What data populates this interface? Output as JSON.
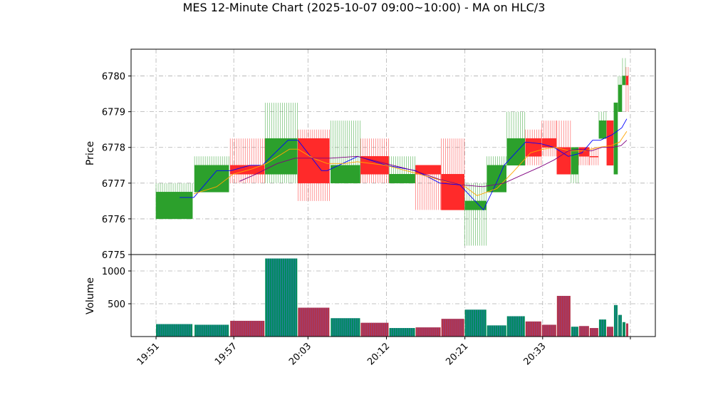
{
  "chart_data": {
    "type": "candlestick",
    "title": "MES 12-Minute Chart (2025-10-07 09:00~10:00) - MA on HLC/3",
    "price_panel": {
      "ylabel": "Price",
      "ylim": [
        6775,
        6780.75
      ],
      "yticks": [
        "6775",
        "6776",
        "6777",
        "6778",
        "6779",
        "6780"
      ],
      "grid": true
    },
    "volume_panel": {
      "ylabel": "Volume",
      "ylim": [
        0,
        1250
      ],
      "yticks": [
        "500",
        "1000"
      ],
      "grid": true
    },
    "xticks": [
      {
        "x": 0.0,
        "label": "19:51"
      },
      {
        "x": 10.9,
        "label": "19:57"
      },
      {
        "x": 21.3,
        "label": "20:03"
      },
      {
        "x": 32.3,
        "label": "20:12"
      },
      {
        "x": 43.3,
        "label": "20:21"
      },
      {
        "x": 54.2,
        "label": "20:33"
      },
      {
        "x": 66.5,
        "label": ""
      }
    ],
    "xlim": [
      -3.5,
      70.0
    ],
    "candles": [
      {
        "x": 0.0,
        "w": 5.1,
        "o": 6776.0,
        "h": 6777.0,
        "l": 6776.0,
        "c": 6776.75,
        "color": "green"
      },
      {
        "x": 5.4,
        "w": 4.8,
        "o": 6776.75,
        "h": 6777.75,
        "l": 6776.75,
        "c": 6777.5,
        "color": "green"
      },
      {
        "x": 10.4,
        "w": 4.8,
        "o": 6777.5,
        "h": 6778.25,
        "l": 6777.0,
        "c": 6777.25,
        "color": "red"
      },
      {
        "x": 15.3,
        "w": 4.5,
        "o": 6777.25,
        "h": 6779.25,
        "l": 6777.0,
        "c": 6778.25,
        "color": "green"
      },
      {
        "x": 19.9,
        "w": 4.4,
        "o": 6778.25,
        "h": 6778.5,
        "l": 6776.5,
        "c": 6777.0,
        "color": "red"
      },
      {
        "x": 24.5,
        "w": 4.1,
        "o": 6777.0,
        "h": 6778.75,
        "l": 6777.0,
        "c": 6777.5,
        "color": "green"
      },
      {
        "x": 28.7,
        "w": 3.9,
        "o": 6777.75,
        "h": 6778.25,
        "l": 6777.0,
        "c": 6777.25,
        "color": "red"
      },
      {
        "x": 32.7,
        "w": 3.6,
        "o": 6777.0,
        "h": 6777.75,
        "l": 6777.0,
        "c": 6777.25,
        "color": "green"
      },
      {
        "x": 36.4,
        "w": 3.5,
        "o": 6777.5,
        "h": 6777.5,
        "l": 6776.25,
        "c": 6777.25,
        "color": "red"
      },
      {
        "x": 40.0,
        "w": 3.2,
        "o": 6777.25,
        "h": 6778.25,
        "l": 6776.25,
        "c": 6776.25,
        "color": "red"
      },
      {
        "x": 43.3,
        "w": 3.0,
        "o": 6776.25,
        "h": 6777.0,
        "l": 6775.25,
        "c": 6776.5,
        "color": "green"
      },
      {
        "x": 46.4,
        "w": 2.7,
        "o": 6776.75,
        "h": 6777.75,
        "l": 6776.75,
        "c": 6777.5,
        "color": "green"
      },
      {
        "x": 49.2,
        "w": 2.5,
        "o": 6777.5,
        "h": 6779.0,
        "l": 6777.5,
        "c": 6778.25,
        "color": "green"
      },
      {
        "x": 51.8,
        "w": 2.2,
        "o": 6778.25,
        "h": 6778.5,
        "l": 6777.5,
        "c": 6777.75,
        "color": "red"
      },
      {
        "x": 54.1,
        "w": 2.0,
        "o": 6778.25,
        "h": 6778.75,
        "l": 6777.75,
        "c": 6778.0,
        "color": "red"
      },
      {
        "x": 56.2,
        "w": 1.9,
        "o": 6778.0,
        "h": 6778.75,
        "l": 6777.25,
        "c": 6777.25,
        "color": "red"
      },
      {
        "x": 58.2,
        "w": 1.0,
        "o": 6777.25,
        "h": 6778.0,
        "l": 6777.0,
        "c": 6778.0,
        "color": "green"
      },
      {
        "x": 59.3,
        "w": 1.4,
        "o": 6778.0,
        "h": 6778.0,
        "l": 6777.5,
        "c": 6777.75,
        "color": "red"
      },
      {
        "x": 60.8,
        "w": 1.2,
        "o": 6777.75,
        "h": 6778.0,
        "l": 6777.5,
        "c": 6777.75,
        "color": "red"
      },
      {
        "x": 62.1,
        "w": 1.0,
        "o": 6778.25,
        "h": 6779.0,
        "l": 6778.25,
        "c": 6778.75,
        "color": "green"
      },
      {
        "x": 63.2,
        "w": 0.9,
        "o": 6778.75,
        "h": 6778.75,
        "l": 6777.5,
        "c": 6777.5,
        "color": "red"
      },
      {
        "x": 64.2,
        "w": 0.5,
        "o": 6777.25,
        "h": 6779.25,
        "l": 6777.25,
        "c": 6779.25,
        "color": "green"
      },
      {
        "x": 64.8,
        "w": 0.5,
        "o": 6779.0,
        "h": 6780.0,
        "l": 6779.0,
        "c": 6779.75,
        "color": "green"
      },
      {
        "x": 65.4,
        "w": 0.4,
        "o": 6779.75,
        "h": 6780.5,
        "l": 6779.75,
        "c": 6780.0,
        "color": "green"
      },
      {
        "x": 65.9,
        "w": 0.3,
        "o": 6780.0,
        "h": 6780.25,
        "l": 6779.0,
        "c": 6779.75,
        "color": "red"
      }
    ],
    "volume": [
      {
        "x": 0.0,
        "w": 5.1,
        "v": 190
      },
      {
        "x": 5.4,
        "w": 4.8,
        "v": 180
      },
      {
        "x": 10.4,
        "w": 4.8,
        "v": 240
      },
      {
        "x": 15.3,
        "w": 4.5,
        "v": 1190
      },
      {
        "x": 19.9,
        "w": 4.4,
        "v": 440
      },
      {
        "x": 24.5,
        "w": 4.1,
        "v": 280
      },
      {
        "x": 28.7,
        "w": 3.9,
        "v": 210
      },
      {
        "x": 32.7,
        "w": 3.6,
        "v": 130
      },
      {
        "x": 36.4,
        "w": 3.5,
        "v": 140
      },
      {
        "x": 40.0,
        "w": 3.2,
        "v": 270
      },
      {
        "x": 43.3,
        "w": 3.0,
        "v": 410
      },
      {
        "x": 46.4,
        "w": 2.7,
        "v": 170
      },
      {
        "x": 49.2,
        "w": 2.5,
        "v": 310
      },
      {
        "x": 51.8,
        "w": 2.2,
        "v": 230
      },
      {
        "x": 54.1,
        "w": 2.0,
        "v": 180
      },
      {
        "x": 56.2,
        "w": 1.9,
        "v": 620
      },
      {
        "x": 58.2,
        "w": 1.0,
        "v": 150
      },
      {
        "x": 59.3,
        "w": 1.4,
        "v": 160
      },
      {
        "x": 60.8,
        "w": 1.2,
        "v": 130
      },
      {
        "x": 62.1,
        "w": 1.0,
        "v": 260
      },
      {
        "x": 63.2,
        "w": 0.9,
        "v": 150
      },
      {
        "x": 64.2,
        "w": 0.5,
        "v": 480
      },
      {
        "x": 64.8,
        "w": 0.5,
        "v": 330
      },
      {
        "x": 65.4,
        "w": 0.4,
        "v": 220
      },
      {
        "x": 65.9,
        "w": 0.3,
        "v": 200
      }
    ],
    "ma_lines": [
      {
        "color": "#0000ff",
        "points": [
          [
            3.3,
            6776.6
          ],
          [
            5.3,
            6776.6
          ],
          [
            8.5,
            6777.35
          ],
          [
            10.5,
            6777.35
          ],
          [
            13.2,
            6777.5
          ],
          [
            14.9,
            6777.5
          ],
          [
            18.5,
            6778.2
          ],
          [
            19.9,
            6778.2
          ],
          [
            23.2,
            6777.35
          ],
          [
            24.0,
            6777.35
          ],
          [
            28.3,
            6777.75
          ],
          [
            32.3,
            6777.5
          ],
          [
            36.4,
            6777.35
          ],
          [
            39.8,
            6777.0
          ],
          [
            42.6,
            6776.95
          ],
          [
            45.9,
            6776.25
          ],
          [
            47.7,
            6777.0
          ],
          [
            48.8,
            6777.5
          ],
          [
            51.8,
            6778.15
          ],
          [
            54.0,
            6778.1
          ],
          [
            55.8,
            6778.0
          ],
          [
            57.8,
            6777.75
          ],
          [
            59.7,
            6777.85
          ],
          [
            61.2,
            6778.2
          ],
          [
            62.3,
            6778.2
          ],
          [
            63.9,
            6778.35
          ],
          [
            65.3,
            6778.55
          ],
          [
            66.0,
            6778.8
          ]
        ]
      },
      {
        "color": "#ffa500",
        "points": [
          [
            5.3,
            6776.7
          ],
          [
            8.5,
            6776.9
          ],
          [
            10.8,
            6777.25
          ],
          [
            13.5,
            6777.4
          ],
          [
            15.5,
            6777.55
          ],
          [
            18.7,
            6777.95
          ],
          [
            19.9,
            6777.95
          ],
          [
            22.0,
            6777.7
          ],
          [
            24.0,
            6777.55
          ],
          [
            26.5,
            6777.55
          ],
          [
            28.2,
            6777.6
          ],
          [
            32.2,
            6777.5
          ],
          [
            36.0,
            6777.3
          ],
          [
            40.5,
            6777.05
          ],
          [
            43.0,
            6776.95
          ],
          [
            45.0,
            6776.65
          ],
          [
            47.8,
            6776.85
          ],
          [
            50.0,
            6777.3
          ],
          [
            52.5,
            6777.85
          ],
          [
            54.3,
            6777.95
          ],
          [
            56.0,
            6778.0
          ],
          [
            58.0,
            6777.9
          ],
          [
            60.0,
            6777.9
          ],
          [
            62.0,
            6778.0
          ],
          [
            63.8,
            6778.05
          ],
          [
            65.0,
            6778.15
          ],
          [
            66.0,
            6778.45
          ]
        ]
      },
      {
        "color": "#800080",
        "points": [
          [
            11.7,
            6777.05
          ],
          [
            14.0,
            6777.25
          ],
          [
            17.0,
            6777.55
          ],
          [
            19.5,
            6777.7
          ],
          [
            22.0,
            6777.7
          ],
          [
            24.5,
            6777.7
          ],
          [
            28.2,
            6777.75
          ],
          [
            32.2,
            6777.55
          ],
          [
            36.2,
            6777.35
          ],
          [
            39.8,
            6777.1
          ],
          [
            42.8,
            6776.95
          ],
          [
            45.8,
            6776.9
          ],
          [
            48.8,
            6777.0
          ],
          [
            51.0,
            6777.2
          ],
          [
            53.8,
            6777.45
          ],
          [
            55.8,
            6777.65
          ],
          [
            57.8,
            6777.9
          ],
          [
            59.3,
            6777.95
          ],
          [
            61.0,
            6777.9
          ],
          [
            62.5,
            6778.0
          ],
          [
            64.0,
            6778.0
          ],
          [
            65.2,
            6778.05
          ],
          [
            66.0,
            6778.2
          ]
        ]
      }
    ],
    "colors": {
      "up": "#2ca02c",
      "down": "#ff2a2a",
      "volume_up": "#008a5e",
      "volume_down": "#b2334a",
      "grid": "#b0b0b0"
    }
  }
}
